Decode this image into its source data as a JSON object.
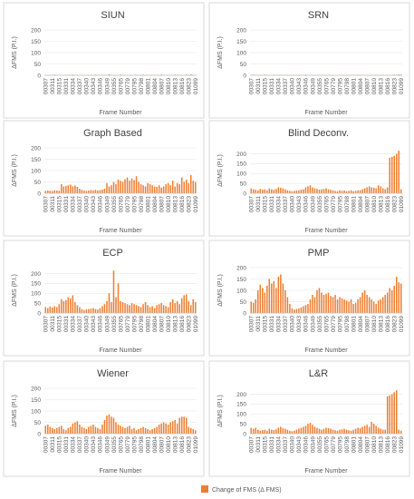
{
  "categories": [
    "00307",
    null,
    null,
    "00311",
    null,
    null,
    "00315",
    null,
    null,
    "00331",
    null,
    null,
    "00334",
    null,
    null,
    "00337",
    null,
    null,
    "00340",
    null,
    null,
    "00343",
    null,
    null,
    "00346",
    null,
    null,
    "00349",
    null,
    null,
    "00355",
    null,
    null,
    "00765",
    null,
    null,
    "00779",
    null,
    null,
    "00795",
    null,
    null,
    "00798",
    null,
    null,
    "00801",
    null,
    null,
    "00804",
    null,
    null,
    "00807",
    null,
    null,
    "00810",
    null,
    null,
    "00813",
    null,
    null,
    "00816",
    null,
    null,
    "00823",
    null,
    null,
    "01099"
  ],
  "legend": {
    "name": "Change of FMS (Δ FMS)",
    "color": "#ed7d31"
  },
  "chart_data": [
    {
      "type": "bar",
      "title": "SIUN",
      "y_label": "ΔFMS (P.I.)",
      "x_label": "Frame Number",
      "color": "#ed7d31",
      "ylim": [
        0,
        200
      ],
      "yticks": [
        0,
        50,
        100,
        150,
        200
      ],
      "values": [
        2,
        1,
        2,
        1,
        3,
        2,
        1,
        2,
        1,
        2,
        1,
        2,
        3,
        1,
        2,
        1,
        2,
        1,
        1,
        2,
        2,
        1,
        3,
        2,
        1,
        2,
        1,
        2,
        4,
        2,
        1,
        2,
        1,
        3,
        2,
        1,
        2,
        1,
        2,
        1,
        2,
        1,
        2,
        3,
        1,
        2,
        1,
        2,
        1,
        2,
        1,
        3,
        2,
        1,
        2,
        1,
        2,
        3,
        1,
        2,
        2,
        1,
        3,
        2,
        4,
        2,
        1
      ]
    },
    {
      "type": "bar",
      "title": "SRN",
      "y_label": "ΔFMS (P.I.)",
      "x_label": "Frame Number",
      "color": "#ed7d31",
      "ylim": [
        0,
        200
      ],
      "yticks": [
        0,
        50,
        100,
        150,
        200
      ],
      "values": [
        1,
        2,
        2,
        1,
        2,
        1,
        3,
        1,
        2,
        1,
        2,
        1,
        2,
        2,
        1,
        2,
        1,
        1,
        2,
        1,
        1,
        2,
        2,
        1,
        3,
        1,
        2,
        2,
        1,
        2,
        2,
        1,
        2,
        1,
        2,
        2,
        1,
        2,
        1,
        1,
        2,
        1,
        1,
        2,
        2,
        1,
        2,
        1,
        2,
        1,
        1,
        2,
        1,
        2,
        1,
        2,
        1,
        2,
        2,
        1,
        2,
        1,
        2,
        3,
        2,
        4,
        3
      ]
    },
    {
      "type": "bar",
      "title": "Graph Based",
      "y_label": "ΔFMS (P.I.)",
      "x_label": "Frame Number",
      "color": "#ed7d31",
      "ylim": [
        0,
        200
      ],
      "yticks": [
        0,
        50,
        100,
        150,
        200
      ],
      "values": [
        10,
        12,
        11,
        10,
        13,
        12,
        11,
        40,
        30,
        32,
        35,
        38,
        30,
        34,
        28,
        20,
        15,
        12,
        10,
        12,
        14,
        13,
        15,
        12,
        14,
        16,
        20,
        45,
        30,
        35,
        50,
        40,
        60,
        55,
        50,
        62,
        70,
        55,
        65,
        58,
        75,
        50,
        40,
        35,
        30,
        45,
        40,
        35,
        30,
        28,
        35,
        25,
        30,
        40,
        45,
        35,
        55,
        30,
        45,
        40,
        70,
        50,
        60,
        45,
        80,
        55,
        50
      ]
    },
    {
      "type": "bar",
      "title": "Blind Deconv.",
      "y_label": "ΔFMS (P.I.)",
      "x_label": "Frame Number",
      "color": "#ed7d31",
      "ylim": [
        0,
        230
      ],
      "yticks": [
        0,
        50,
        100,
        150,
        200
      ],
      "values": [
        25,
        20,
        18,
        15,
        22,
        18,
        20,
        15,
        25,
        20,
        18,
        22,
        30,
        28,
        25,
        20,
        15,
        12,
        10,
        12,
        14,
        15,
        18,
        20,
        30,
        35,
        40,
        30,
        25,
        22,
        18,
        20,
        22,
        25,
        20,
        18,
        15,
        12,
        10,
        15,
        12,
        14,
        10,
        12,
        15,
        10,
        12,
        14,
        15,
        20,
        25,
        30,
        35,
        30,
        28,
        25,
        40,
        35,
        25,
        20,
        30,
        180,
        185,
        190,
        200,
        215,
        20
      ]
    },
    {
      "type": "bar",
      "title": "ECP",
      "y_label": "ΔFMS (P.I.)",
      "x_label": "Frame Number",
      "color": "#ed7d31",
      "ylim": [
        0,
        230
      ],
      "yticks": [
        0,
        50,
        100,
        150,
        200
      ],
      "values": [
        30,
        25,
        32,
        28,
        35,
        30,
        45,
        70,
        60,
        65,
        80,
        75,
        90,
        55,
        40,
        30,
        20,
        15,
        18,
        20,
        22,
        25,
        20,
        18,
        25,
        35,
        45,
        60,
        100,
        55,
        215,
        80,
        150,
        60,
        55,
        50,
        45,
        40,
        50,
        45,
        40,
        35,
        30,
        45,
        55,
        40,
        30,
        35,
        25,
        40,
        45,
        50,
        40,
        35,
        30,
        55,
        70,
        50,
        60,
        45,
        75,
        90,
        95,
        60,
        40,
        70,
        55
      ]
    },
    {
      "type": "bar",
      "title": "PMP",
      "y_label": "ΔFMS (P.I.)",
      "x_label": "Frame Number",
      "color": "#ed7d31",
      "ylim": [
        0,
        200
      ],
      "yticks": [
        0,
        50,
        100,
        150,
        200
      ],
      "values": [
        50,
        45,
        60,
        100,
        125,
        110,
        90,
        120,
        150,
        130,
        140,
        110,
        160,
        170,
        130,
        100,
        70,
        40,
        20,
        15,
        18,
        20,
        25,
        30,
        35,
        40,
        60,
        80,
        70,
        100,
        110,
        90,
        80,
        85,
        90,
        75,
        70,
        80,
        60,
        70,
        65,
        60,
        55,
        50,
        60,
        40,
        45,
        60,
        70,
        90,
        100,
        80,
        70,
        60,
        50,
        40,
        55,
        60,
        70,
        80,
        90,
        110,
        100,
        120,
        160,
        135,
        130
      ]
    },
    {
      "type": "bar",
      "title": "Wiener",
      "y_label": "ΔFMS (P.I.)",
      "x_label": "Frame Number",
      "color": "#ed7d31",
      "ylim": [
        0,
        200
      ],
      "yticks": [
        0,
        50,
        100,
        150,
        200
      ],
      "values": [
        35,
        40,
        30,
        25,
        20,
        25,
        30,
        35,
        20,
        15,
        25,
        30,
        45,
        50,
        55,
        40,
        30,
        25,
        20,
        30,
        35,
        40,
        30,
        25,
        20,
        40,
        60,
        80,
        85,
        75,
        70,
        50,
        40,
        35,
        30,
        25,
        30,
        35,
        20,
        25,
        15,
        20,
        25,
        30,
        25,
        20,
        15,
        20,
        25,
        30,
        40,
        45,
        50,
        45,
        40,
        50,
        55,
        60,
        45,
        70,
        75,
        75,
        70,
        30,
        25,
        20,
        15
      ]
    },
    {
      "type": "bar",
      "title": "L&R",
      "y_label": "ΔFMS (P.I.)",
      "x_label": "Frame Number",
      "color": "#ed7d31",
      "ylim": [
        0,
        230
      ],
      "yticks": [
        0,
        50,
        100,
        150,
        200
      ],
      "values": [
        30,
        25,
        30,
        20,
        15,
        18,
        20,
        15,
        25,
        20,
        18,
        22,
        30,
        35,
        28,
        25,
        20,
        15,
        12,
        15,
        20,
        25,
        30,
        35,
        40,
        50,
        55,
        45,
        35,
        30,
        25,
        20,
        25,
        30,
        28,
        25,
        20,
        18,
        15,
        20,
        22,
        25,
        20,
        18,
        15,
        20,
        25,
        30,
        28,
        35,
        40,
        45,
        35,
        60,
        50,
        40,
        30,
        25,
        20,
        20,
        190,
        195,
        200,
        210,
        220,
        20,
        15
      ]
    }
  ]
}
